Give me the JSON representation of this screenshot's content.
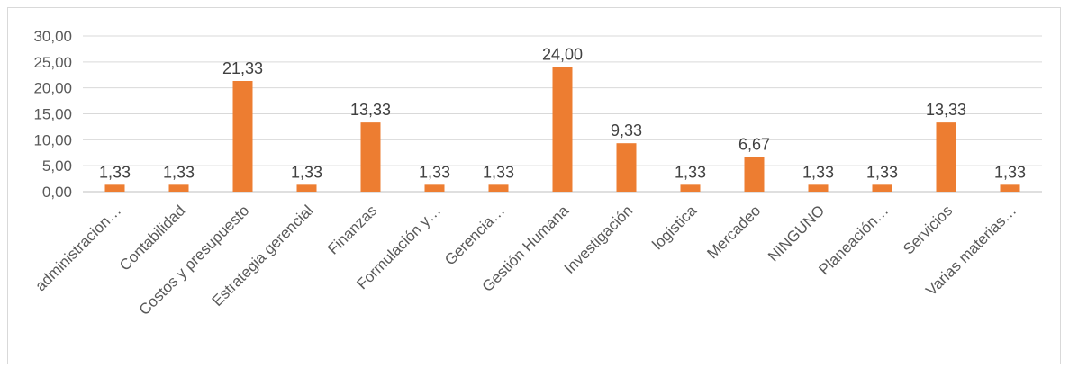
{
  "chart_data": {
    "type": "bar",
    "categories": [
      "administracion…",
      "Contabilidad",
      "Costos y presupuesto",
      "Estrategia gerencial",
      "Finanzas",
      "Formulación y…",
      "Gerencia…",
      "Gestión Humana",
      "Investigación",
      "logistica",
      "Mercadeo",
      "NINGUNO",
      "Planeación…",
      "Servicios",
      "Varias materias…"
    ],
    "values": [
      1.33,
      1.33,
      21.33,
      1.33,
      13.33,
      1.33,
      1.33,
      24.0,
      9.33,
      1.33,
      6.67,
      1.33,
      1.33,
      13.33,
      1.33
    ],
    "data_labels": [
      "1,33",
      "1,33",
      "21,33",
      "1,33",
      "13,33",
      "1,33",
      "1,33",
      "24,00",
      "9,33",
      "1,33",
      "6,67",
      "1,33",
      "1,33",
      "13,33",
      "1,33"
    ],
    "title": "",
    "xlabel": "",
    "ylabel": "",
    "ylim": [
      0,
      30
    ],
    "y_ticks": [
      "0,00",
      "5,00",
      "10,00",
      "15,00",
      "20,00",
      "25,00",
      "30,00"
    ],
    "grid": true,
    "legend": "none",
    "bar_color": "#ED7D31"
  }
}
